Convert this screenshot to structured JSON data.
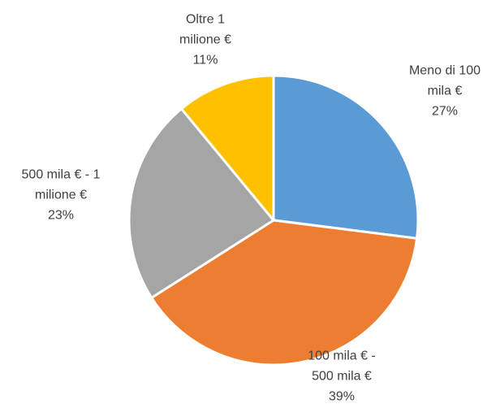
{
  "chart_data": {
    "type": "pie",
    "categories": [
      "Meno di 100 mila €",
      "100 mila € - 500 mila €",
      "500 mila € - 1 milione €",
      "Oltre 1 milione €"
    ],
    "values": [
      27,
      39,
      23,
      11
    ],
    "value_labels": [
      "27%",
      "39%",
      "23%",
      "11%"
    ],
    "colors": [
      "#5b9bd5",
      "#ed7d31",
      "#a5a5a5",
      "#ffc000"
    ]
  }
}
